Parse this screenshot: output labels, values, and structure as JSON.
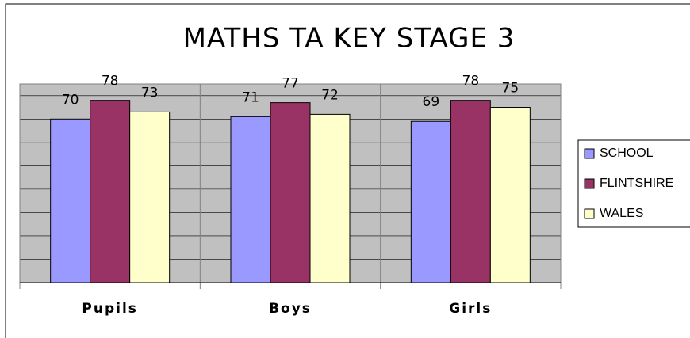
{
  "chart_data": {
    "type": "bar",
    "title": "MATHS TA KEY STAGE 3",
    "categories": [
      "Pupils",
      "Boys",
      "Girls"
    ],
    "series": [
      {
        "name": "SCHOOL",
        "color": "#9999ff",
        "values": [
          70,
          71,
          69
        ]
      },
      {
        "name": "FLINTSHIRE",
        "color": "#993366",
        "values": [
          78,
          77,
          78
        ]
      },
      {
        "name": "WALES",
        "color": "#ffffcc",
        "values": [
          73,
          72,
          75
        ]
      }
    ],
    "ylim": [
      0,
      85
    ],
    "yticks": [
      0,
      10,
      20,
      30,
      40,
      50,
      60,
      70,
      80
    ],
    "grid": true,
    "legend": "right"
  }
}
